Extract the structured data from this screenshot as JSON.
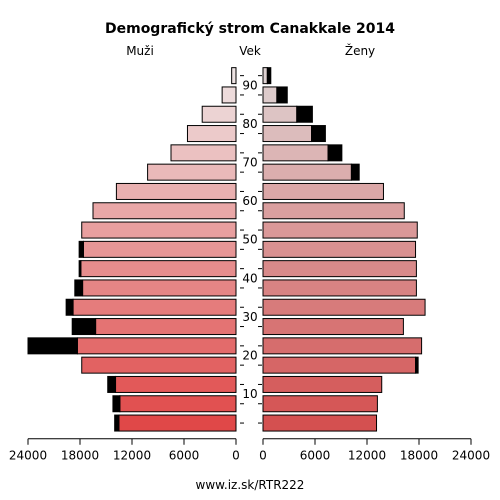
{
  "chart_data": {
    "type": "bar",
    "title": "Demografický strom Canakkale 2014",
    "labels": {
      "left": "Muži",
      "center": "Vek",
      "right": "Ženy"
    },
    "footer": "www.iz.sk/RTR222",
    "age_groups": [
      "0-4",
      "5-9",
      "10-14",
      "15-19",
      "20-24",
      "25-29",
      "30-34",
      "35-39",
      "40-44",
      "45-49",
      "50-54",
      "55-59",
      "60-64",
      "65-69",
      "70-74",
      "75-79",
      "80-84",
      "85-89",
      "90+"
    ],
    "y_tick_labels": [
      "10",
      "20",
      "30",
      "40",
      "50",
      "60",
      "70",
      "80",
      "90"
    ],
    "x_tick_labels_left": [
      "24000",
      "18000",
      "12000",
      "6000",
      "0"
    ],
    "x_tick_labels_right": [
      "0",
      "6000",
      "12000",
      "18000",
      "24000"
    ],
    "xlim": [
      0,
      24000
    ],
    "series": [
      {
        "name": "Muži",
        "values": [
          13500,
          13400,
          13900,
          17800,
          18300,
          16200,
          18800,
          17700,
          17900,
          17600,
          17800,
          16500,
          13800,
          10200,
          7500,
          5600,
          3900,
          1600,
          500
        ],
        "excess": [
          500,
          800,
          900,
          0,
          5700,
          2700,
          800,
          900,
          200,
          500,
          0,
          0,
          0,
          0,
          0,
          0,
          0,
          0,
          0
        ]
      },
      {
        "name": "Ženy",
        "values": [
          13100,
          13200,
          13700,
          17600,
          18300,
          16200,
          18700,
          17700,
          17700,
          17600,
          17800,
          16300,
          13900,
          10200,
          7500,
          5600,
          3900,
          1600,
          500
        ],
        "excess": [
          0,
          0,
          0,
          300,
          0,
          0,
          0,
          0,
          0,
          0,
          0,
          0,
          0,
          900,
          1600,
          1600,
          1800,
          1200,
          400
        ]
      }
    ]
  }
}
